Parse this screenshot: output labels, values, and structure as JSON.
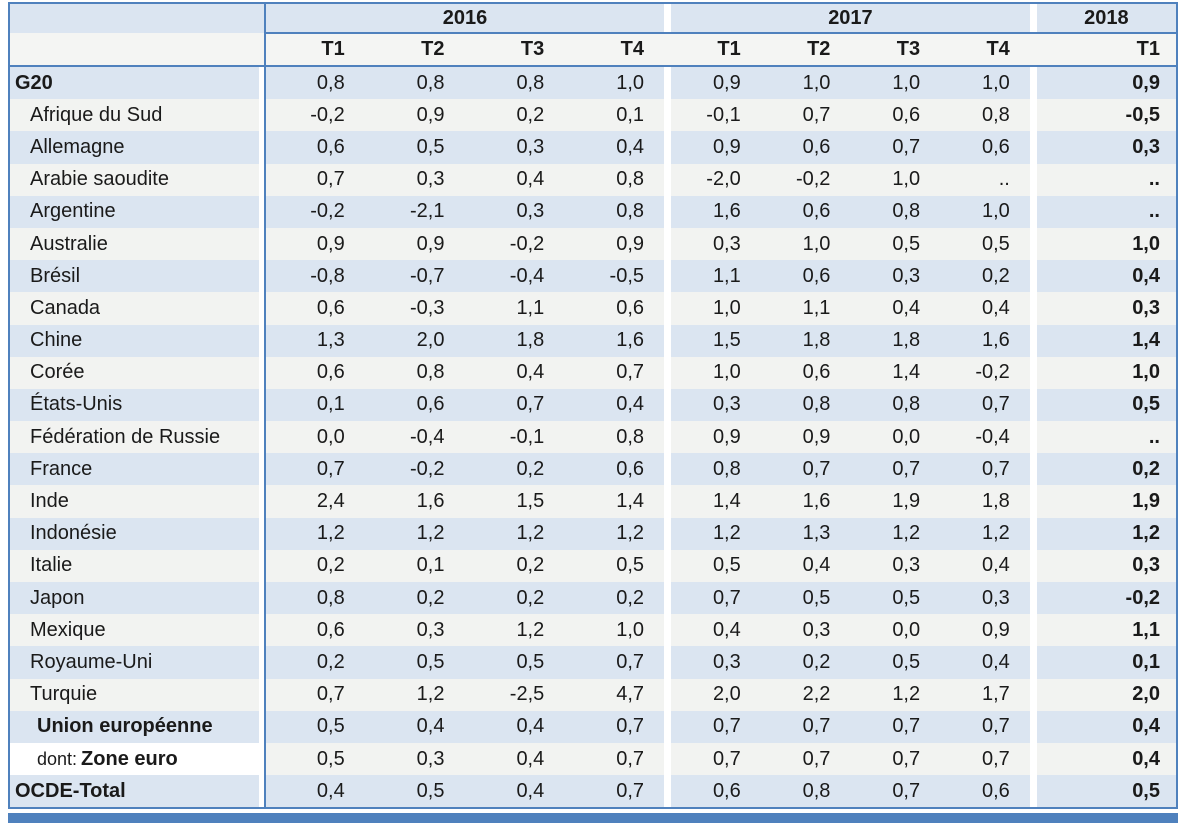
{
  "colors": {
    "accent_border": "#4f81bd",
    "band_blue": "#dbe5f1",
    "band_light": "#f2f3f1"
  },
  "chart_data": {
    "type": "table",
    "description_note": "",
    "missing_value_symbol": "..",
    "column_groups": [
      {
        "label": "2016",
        "columns": [
          "T1",
          "T2",
          "T3",
          "T4"
        ]
      },
      {
        "label": "2017",
        "columns": [
          "T1",
          "T2",
          "T3",
          "T4"
        ]
      },
      {
        "label": "2018",
        "columns": [
          "T1"
        ]
      }
    ],
    "rows": [
      {
        "label": "G20",
        "bold": true,
        "indent": 0,
        "values": [
          "0,8",
          "0,8",
          "0,8",
          "1,0",
          "0,9",
          "1,0",
          "1,0",
          "1,0",
          "0,9"
        ]
      },
      {
        "label": "Afrique du Sud",
        "bold": false,
        "indent": 1,
        "values": [
          "-0,2",
          "0,9",
          "0,2",
          "0,1",
          "-0,1",
          "0,7",
          "0,6",
          "0,8",
          "-0,5"
        ]
      },
      {
        "label": "Allemagne",
        "bold": false,
        "indent": 1,
        "values": [
          "0,6",
          "0,5",
          "0,3",
          "0,4",
          "0,9",
          "0,6",
          "0,7",
          "0,6",
          "0,3"
        ]
      },
      {
        "label": "Arabie saoudite",
        "bold": false,
        "indent": 1,
        "values": [
          "0,7",
          "0,3",
          "0,4",
          "0,8",
          "-2,0",
          "-0,2",
          "1,0",
          "..",
          ".."
        ]
      },
      {
        "label": "Argentine",
        "bold": false,
        "indent": 1,
        "values": [
          "-0,2",
          "-2,1",
          "0,3",
          "0,8",
          "1,6",
          "0,6",
          "0,8",
          "1,0",
          ".."
        ]
      },
      {
        "label": "Australie",
        "bold": false,
        "indent": 1,
        "values": [
          "0,9",
          "0,9",
          "-0,2",
          "0,9",
          "0,3",
          "1,0",
          "0,5",
          "0,5",
          "1,0"
        ]
      },
      {
        "label": "Brésil",
        "bold": false,
        "indent": 1,
        "values": [
          "-0,8",
          "-0,7",
          "-0,4",
          "-0,5",
          "1,1",
          "0,6",
          "0,3",
          "0,2",
          "0,4"
        ]
      },
      {
        "label": "Canada",
        "bold": false,
        "indent": 1,
        "values": [
          "0,6",
          "-0,3",
          "1,1",
          "0,6",
          "1,0",
          "1,1",
          "0,4",
          "0,4",
          "0,3"
        ]
      },
      {
        "label": "Chine",
        "bold": false,
        "indent": 1,
        "values": [
          "1,3",
          "2,0",
          "1,8",
          "1,6",
          "1,5",
          "1,8",
          "1,8",
          "1,6",
          "1,4"
        ]
      },
      {
        "label": "Corée",
        "bold": false,
        "indent": 1,
        "values": [
          "0,6",
          "0,8",
          "0,4",
          "0,7",
          "1,0",
          "0,6",
          "1,4",
          "-0,2",
          "1,0"
        ]
      },
      {
        "label": "États-Unis",
        "bold": false,
        "indent": 1,
        "values": [
          "0,1",
          "0,6",
          "0,7",
          "0,4",
          "0,3",
          "0,8",
          "0,8",
          "0,7",
          "0,5"
        ]
      },
      {
        "label": "Fédération de Russie",
        "bold": false,
        "indent": 1,
        "values": [
          "0,0",
          "-0,4",
          "-0,1",
          "0,8",
          "0,9",
          "0,9",
          "0,0",
          "-0,4",
          ".."
        ]
      },
      {
        "label": "France",
        "bold": false,
        "indent": 1,
        "values": [
          "0,7",
          "-0,2",
          "0,2",
          "0,6",
          "0,8",
          "0,7",
          "0,7",
          "0,7",
          "0,2"
        ]
      },
      {
        "label": "Inde",
        "bold": false,
        "indent": 1,
        "values": [
          "2,4",
          "1,6",
          "1,5",
          "1,4",
          "1,4",
          "1,6",
          "1,9",
          "1,8",
          "1,9"
        ]
      },
      {
        "label": "Indonésie",
        "bold": false,
        "indent": 1,
        "values": [
          "1,2",
          "1,2",
          "1,2",
          "1,2",
          "1,2",
          "1,3",
          "1,2",
          "1,2",
          "1,2"
        ]
      },
      {
        "label": "Italie",
        "bold": false,
        "indent": 1,
        "values": [
          "0,2",
          "0,1",
          "0,2",
          "0,5",
          "0,5",
          "0,4",
          "0,3",
          "0,4",
          "0,3"
        ]
      },
      {
        "label": "Japon",
        "bold": false,
        "indent": 1,
        "values": [
          "0,8",
          "0,2",
          "0,2",
          "0,2",
          "0,7",
          "0,5",
          "0,5",
          "0,3",
          "-0,2"
        ]
      },
      {
        "label": "Mexique",
        "bold": false,
        "indent": 1,
        "values": [
          "0,6",
          "0,3",
          "1,2",
          "1,0",
          "0,4",
          "0,3",
          "0,0",
          "0,9",
          "1,1"
        ]
      },
      {
        "label": "Royaume-Uni",
        "bold": false,
        "indent": 1,
        "values": [
          "0,2",
          "0,5",
          "0,5",
          "0,7",
          "0,3",
          "0,2",
          "0,5",
          "0,4",
          "0,1"
        ]
      },
      {
        "label": "Turquie",
        "bold": false,
        "indent": 1,
        "values": [
          "0,7",
          "1,2",
          "-2,5",
          "4,7",
          "2,0",
          "2,2",
          "1,2",
          "1,7",
          "2,0"
        ]
      },
      {
        "label": "Union européenne",
        "bold": true,
        "indent": 2,
        "values": [
          "0,5",
          "0,4",
          "0,4",
          "0,7",
          "0,7",
          "0,7",
          "0,7",
          "0,7",
          "0,4"
        ]
      },
      {
        "label": "Zone euro",
        "label_prefix": "dont:",
        "bold": true,
        "indent": 2,
        "white_label": true,
        "values": [
          "0,5",
          "0,3",
          "0,4",
          "0,7",
          "0,7",
          "0,7",
          "0,7",
          "0,7",
          "0,4"
        ]
      },
      {
        "label": "OCDE-Total",
        "bold": true,
        "indent": 0,
        "values": [
          "0,4",
          "0,5",
          "0,4",
          "0,7",
          "0,6",
          "0,8",
          "0,7",
          "0,6",
          "0,5"
        ]
      }
    ]
  }
}
